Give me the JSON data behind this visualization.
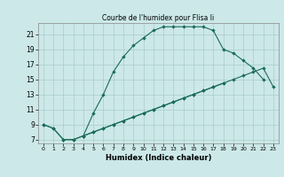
{
  "title": "Courbe de l'humidex pour Flisa Ii",
  "xlabel": "Humidex (Indice chaleur)",
  "bg_color": "#cce8e8",
  "grid_color": "#aacccc",
  "line_color": "#1a6b5a",
  "xlim": [
    -0.5,
    23.5
  ],
  "ylim": [
    6.5,
    22.5
  ],
  "xticks": [
    0,
    1,
    2,
    3,
    4,
    5,
    6,
    7,
    8,
    9,
    10,
    11,
    12,
    13,
    14,
    15,
    16,
    17,
    18,
    19,
    20,
    21,
    22,
    23
  ],
  "yticks": [
    7,
    9,
    11,
    13,
    15,
    17,
    19,
    21
  ],
  "line1_x": [
    0,
    1,
    2,
    3,
    4,
    5,
    6,
    7,
    8,
    9,
    10,
    11,
    12,
    13,
    14,
    15,
    16,
    17,
    18,
    19,
    20,
    21,
    22
  ],
  "line1_y": [
    9.0,
    8.5,
    7.0,
    7.0,
    7.5,
    10.5,
    13.0,
    16.0,
    18.0,
    19.5,
    20.5,
    21.5,
    22.0,
    22.0,
    22.0,
    22.0,
    22.0,
    21.5,
    19.0,
    18.5,
    17.5,
    16.5,
    15.0
  ],
  "line2_x": [
    0,
    1,
    2,
    3,
    4,
    5,
    6,
    7,
    8,
    9,
    10,
    11,
    12,
    13,
    14,
    15,
    16,
    17,
    18
  ],
  "line2_y": [
    9.0,
    8.5,
    7.0,
    7.0,
    7.5,
    8.0,
    8.5,
    9.0,
    9.5,
    10.0,
    10.5,
    11.0,
    11.5,
    12.0,
    12.5,
    13.0,
    13.5,
    14.0,
    14.5
  ],
  "line3_x": [
    4,
    5,
    6,
    7,
    8,
    9,
    10,
    11,
    12,
    13,
    14,
    15,
    16,
    17,
    18,
    19,
    20,
    21,
    22,
    23
  ],
  "line3_y": [
    7.5,
    8.0,
    8.5,
    9.0,
    9.5,
    10.0,
    10.5,
    11.0,
    11.5,
    12.0,
    12.5,
    13.0,
    13.5,
    14.0,
    14.5,
    15.0,
    15.5,
    16.0,
    16.5,
    14.0
  ]
}
